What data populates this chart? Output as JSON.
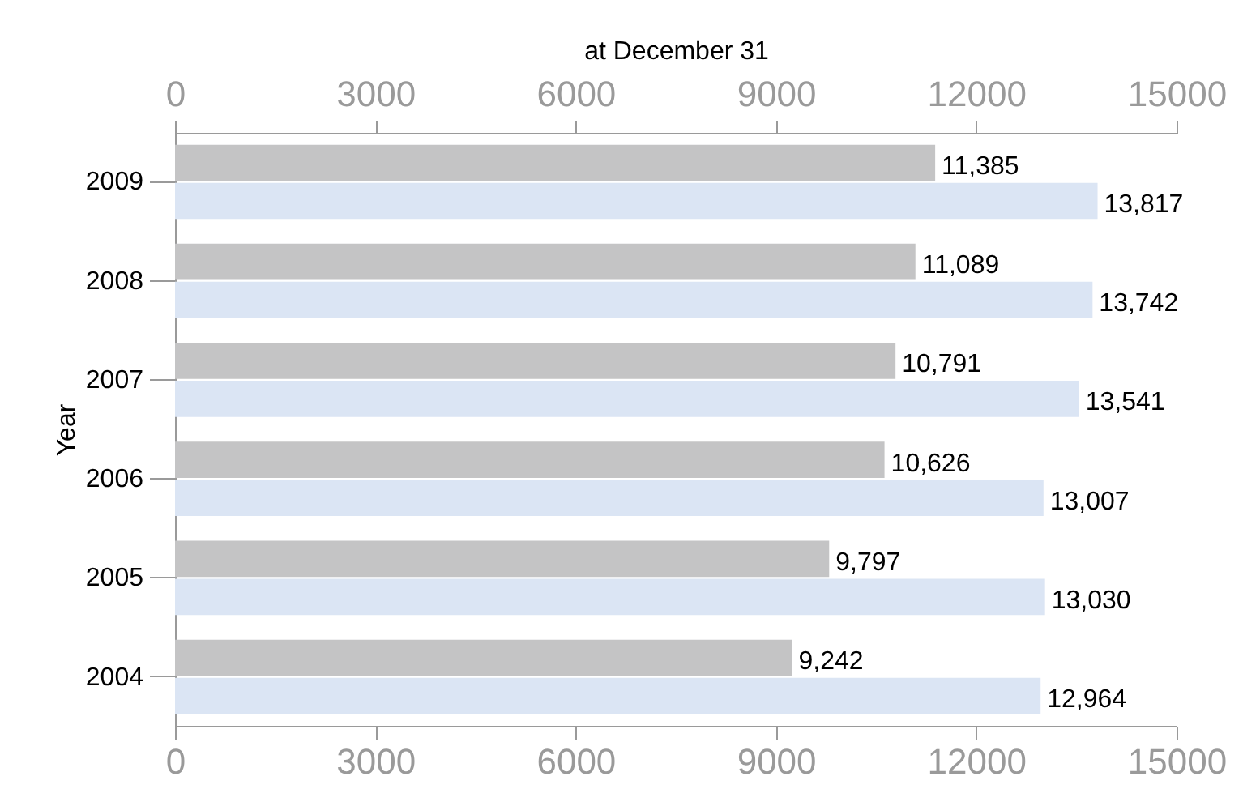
{
  "chart_data": {
    "type": "bar",
    "orientation": "horizontal",
    "x2label": "at December 31",
    "ylabel": "Year",
    "categories": [
      "2009",
      "2008",
      "2007",
      "2006",
      "2005",
      "2004"
    ],
    "series": [
      {
        "color": "#c4c4c5",
        "values": [
          11385,
          11089,
          10791,
          10626,
          9797,
          9242
        ],
        "value_labels": [
          "11,385",
          "11,089",
          "10,791",
          "10,626",
          "9,797",
          "9,242"
        ]
      },
      {
        "color": "#dbe5f4",
        "values": [
          13817,
          13742,
          13541,
          13007,
          13030,
          12964
        ],
        "value_labels": [
          "13,817",
          "13,742",
          "13,541",
          "13,007",
          "13,030",
          "12,964"
        ]
      }
    ],
    "xlim": [
      0,
      15000
    ],
    "xticks": [
      0,
      3000,
      6000,
      9000,
      12000,
      15000
    ],
    "x2lim": [
      0,
      15000
    ],
    "x2ticks": [
      0,
      3000,
      6000,
      9000,
      12000,
      15000
    ],
    "grid": false,
    "legend": false
  }
}
